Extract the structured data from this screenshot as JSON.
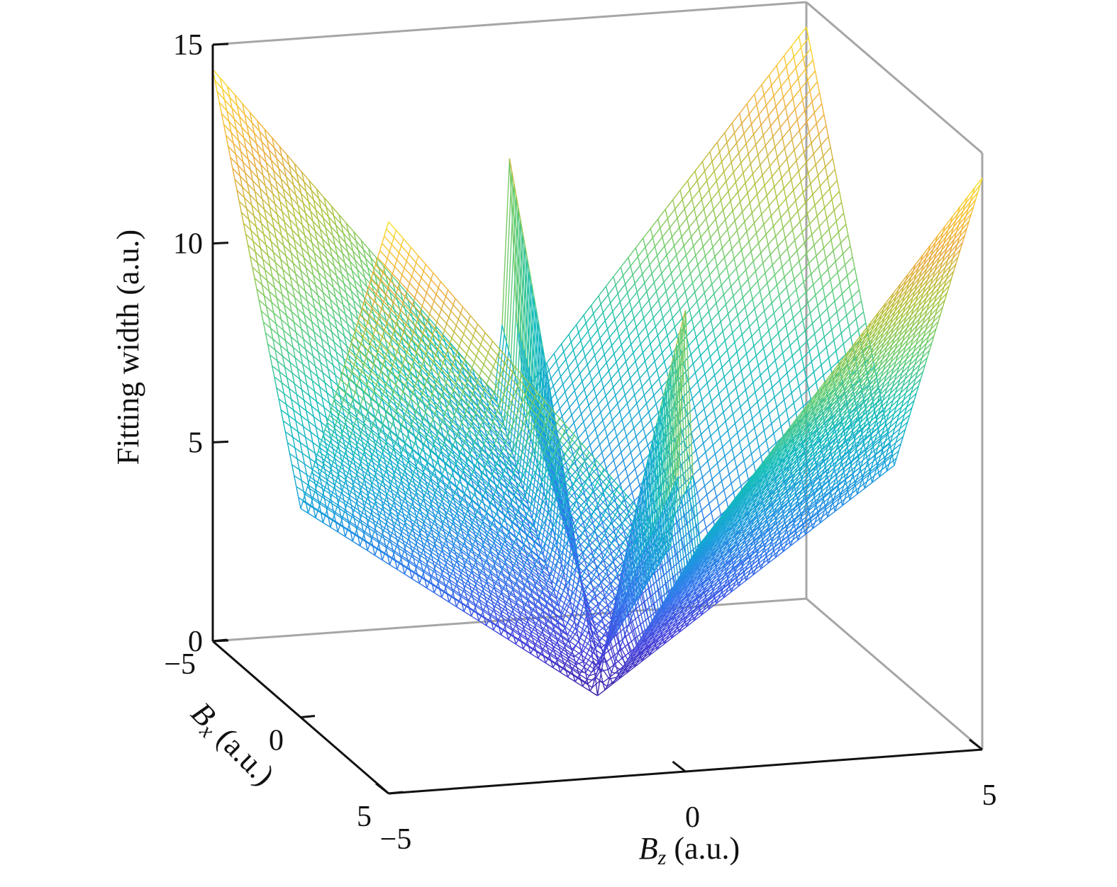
{
  "chart_data": {
    "type": "surface-mesh",
    "zlabel": "Fitting width (a.u.)",
    "xlabel_symbol": "B",
    "xlabel_subscript": "z",
    "xlabel_unit": " (a.u.)",
    "ylabel_symbol": "B",
    "ylabel_subscript": "x",
    "ylabel_unit": " (a.u.)",
    "x_axis": {
      "name": "Bz",
      "range": [
        -5,
        5
      ],
      "ticks": [
        -5,
        0,
        5
      ],
      "tick_labels": [
        "−5",
        "0",
        "5"
      ]
    },
    "y_axis": {
      "name": "Bx",
      "range": [
        -5,
        5
      ],
      "ticks": [
        -5,
        0,
        5
      ],
      "tick_labels": [
        "−5",
        "0",
        "5"
      ]
    },
    "z_axis": {
      "range": [
        0,
        15
      ],
      "ticks": [
        0,
        5,
        10,
        15
      ],
      "tick_labels": [
        "0",
        "5",
        "10",
        "15"
      ]
    },
    "surface": {
      "description_values": {
        "min_width": 0.0,
        "max_width_corner": 14.5,
        "ridge_height": 12.0
      },
      "grid_points": 81,
      "colormap": "parula"
    }
  }
}
